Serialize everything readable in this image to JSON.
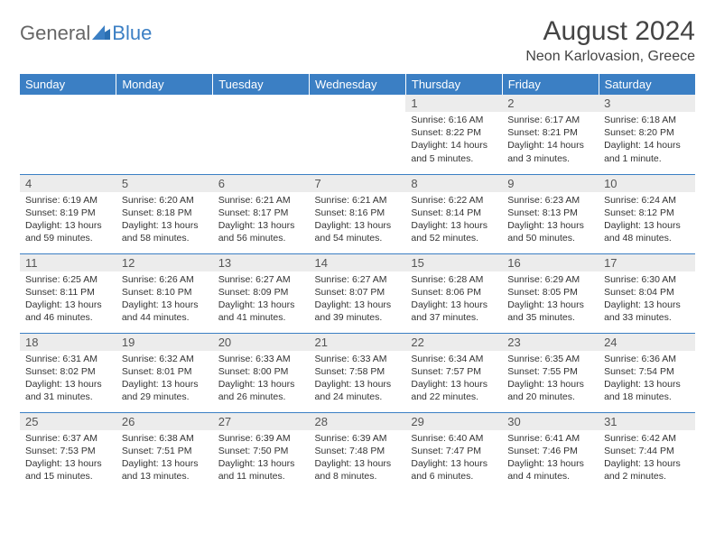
{
  "brand": {
    "part1": "General",
    "part2": "Blue"
  },
  "title": "August 2024",
  "location": "Neon Karlovasion, Greece",
  "colors": {
    "header_bg": "#3b7fc4",
    "header_text": "#ffffff",
    "daynum_bg": "#ececec",
    "row_border": "#3b7fc4",
    "page_bg": "#ffffff",
    "text": "#333333"
  },
  "dayNames": [
    "Sunday",
    "Monday",
    "Tuesday",
    "Wednesday",
    "Thursday",
    "Friday",
    "Saturday"
  ],
  "weeks": [
    [
      null,
      null,
      null,
      null,
      {
        "n": "1",
        "sunrise": "Sunrise: 6:16 AM",
        "sunset": "Sunset: 8:22 PM",
        "daylight": "Daylight: 14 hours and 5 minutes."
      },
      {
        "n": "2",
        "sunrise": "Sunrise: 6:17 AM",
        "sunset": "Sunset: 8:21 PM",
        "daylight": "Daylight: 14 hours and 3 minutes."
      },
      {
        "n": "3",
        "sunrise": "Sunrise: 6:18 AM",
        "sunset": "Sunset: 8:20 PM",
        "daylight": "Daylight: 14 hours and 1 minute."
      }
    ],
    [
      {
        "n": "4",
        "sunrise": "Sunrise: 6:19 AM",
        "sunset": "Sunset: 8:19 PM",
        "daylight": "Daylight: 13 hours and 59 minutes."
      },
      {
        "n": "5",
        "sunrise": "Sunrise: 6:20 AM",
        "sunset": "Sunset: 8:18 PM",
        "daylight": "Daylight: 13 hours and 58 minutes."
      },
      {
        "n": "6",
        "sunrise": "Sunrise: 6:21 AM",
        "sunset": "Sunset: 8:17 PM",
        "daylight": "Daylight: 13 hours and 56 minutes."
      },
      {
        "n": "7",
        "sunrise": "Sunrise: 6:21 AM",
        "sunset": "Sunset: 8:16 PM",
        "daylight": "Daylight: 13 hours and 54 minutes."
      },
      {
        "n": "8",
        "sunrise": "Sunrise: 6:22 AM",
        "sunset": "Sunset: 8:14 PM",
        "daylight": "Daylight: 13 hours and 52 minutes."
      },
      {
        "n": "9",
        "sunrise": "Sunrise: 6:23 AM",
        "sunset": "Sunset: 8:13 PM",
        "daylight": "Daylight: 13 hours and 50 minutes."
      },
      {
        "n": "10",
        "sunrise": "Sunrise: 6:24 AM",
        "sunset": "Sunset: 8:12 PM",
        "daylight": "Daylight: 13 hours and 48 minutes."
      }
    ],
    [
      {
        "n": "11",
        "sunrise": "Sunrise: 6:25 AM",
        "sunset": "Sunset: 8:11 PM",
        "daylight": "Daylight: 13 hours and 46 minutes."
      },
      {
        "n": "12",
        "sunrise": "Sunrise: 6:26 AM",
        "sunset": "Sunset: 8:10 PM",
        "daylight": "Daylight: 13 hours and 44 minutes."
      },
      {
        "n": "13",
        "sunrise": "Sunrise: 6:27 AM",
        "sunset": "Sunset: 8:09 PM",
        "daylight": "Daylight: 13 hours and 41 minutes."
      },
      {
        "n": "14",
        "sunrise": "Sunrise: 6:27 AM",
        "sunset": "Sunset: 8:07 PM",
        "daylight": "Daylight: 13 hours and 39 minutes."
      },
      {
        "n": "15",
        "sunrise": "Sunrise: 6:28 AM",
        "sunset": "Sunset: 8:06 PM",
        "daylight": "Daylight: 13 hours and 37 minutes."
      },
      {
        "n": "16",
        "sunrise": "Sunrise: 6:29 AM",
        "sunset": "Sunset: 8:05 PM",
        "daylight": "Daylight: 13 hours and 35 minutes."
      },
      {
        "n": "17",
        "sunrise": "Sunrise: 6:30 AM",
        "sunset": "Sunset: 8:04 PM",
        "daylight": "Daylight: 13 hours and 33 minutes."
      }
    ],
    [
      {
        "n": "18",
        "sunrise": "Sunrise: 6:31 AM",
        "sunset": "Sunset: 8:02 PM",
        "daylight": "Daylight: 13 hours and 31 minutes."
      },
      {
        "n": "19",
        "sunrise": "Sunrise: 6:32 AM",
        "sunset": "Sunset: 8:01 PM",
        "daylight": "Daylight: 13 hours and 29 minutes."
      },
      {
        "n": "20",
        "sunrise": "Sunrise: 6:33 AM",
        "sunset": "Sunset: 8:00 PM",
        "daylight": "Daylight: 13 hours and 26 minutes."
      },
      {
        "n": "21",
        "sunrise": "Sunrise: 6:33 AM",
        "sunset": "Sunset: 7:58 PM",
        "daylight": "Daylight: 13 hours and 24 minutes."
      },
      {
        "n": "22",
        "sunrise": "Sunrise: 6:34 AM",
        "sunset": "Sunset: 7:57 PM",
        "daylight": "Daylight: 13 hours and 22 minutes."
      },
      {
        "n": "23",
        "sunrise": "Sunrise: 6:35 AM",
        "sunset": "Sunset: 7:55 PM",
        "daylight": "Daylight: 13 hours and 20 minutes."
      },
      {
        "n": "24",
        "sunrise": "Sunrise: 6:36 AM",
        "sunset": "Sunset: 7:54 PM",
        "daylight": "Daylight: 13 hours and 18 minutes."
      }
    ],
    [
      {
        "n": "25",
        "sunrise": "Sunrise: 6:37 AM",
        "sunset": "Sunset: 7:53 PM",
        "daylight": "Daylight: 13 hours and 15 minutes."
      },
      {
        "n": "26",
        "sunrise": "Sunrise: 6:38 AM",
        "sunset": "Sunset: 7:51 PM",
        "daylight": "Daylight: 13 hours and 13 minutes."
      },
      {
        "n": "27",
        "sunrise": "Sunrise: 6:39 AM",
        "sunset": "Sunset: 7:50 PM",
        "daylight": "Daylight: 13 hours and 11 minutes."
      },
      {
        "n": "28",
        "sunrise": "Sunrise: 6:39 AM",
        "sunset": "Sunset: 7:48 PM",
        "daylight": "Daylight: 13 hours and 8 minutes."
      },
      {
        "n": "29",
        "sunrise": "Sunrise: 6:40 AM",
        "sunset": "Sunset: 7:47 PM",
        "daylight": "Daylight: 13 hours and 6 minutes."
      },
      {
        "n": "30",
        "sunrise": "Sunrise: 6:41 AM",
        "sunset": "Sunset: 7:46 PM",
        "daylight": "Daylight: 13 hours and 4 minutes."
      },
      {
        "n": "31",
        "sunrise": "Sunrise: 6:42 AM",
        "sunset": "Sunset: 7:44 PM",
        "daylight": "Daylight: 13 hours and 2 minutes."
      }
    ]
  ]
}
